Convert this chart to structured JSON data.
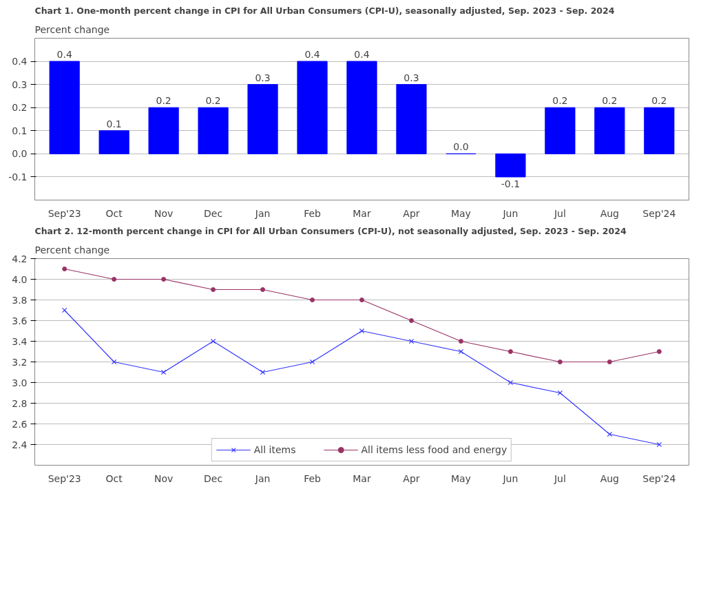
{
  "chart_data": [
    {
      "type": "bar",
      "title": "Chart 1. One-month percent change in CPI for All Urban Consumers (CPI-U), seasonally adjusted, Sep. 2023 - Sep. 2024",
      "ylabel": "Percent change",
      "categories": [
        "Sep'23",
        "Oct",
        "Nov",
        "Dec",
        "Jan",
        "Feb",
        "Mar",
        "Apr",
        "May",
        "Jun",
        "Jul",
        "Aug",
        "Sep'24"
      ],
      "values": [
        0.4,
        0.1,
        0.2,
        0.2,
        0.3,
        0.4,
        0.4,
        0.3,
        0.0,
        -0.1,
        0.2,
        0.2,
        0.2
      ],
      "color": "#0000ff",
      "ylim": [
        -0.2,
        0.5
      ],
      "yticks": [
        {
          "value": -0.1,
          "label": "-0.1"
        },
        {
          "value": 0.0,
          "label": "0.0"
        },
        {
          "value": 0.1,
          "label": "0.1"
        },
        {
          "value": 0.2,
          "label": "0.2"
        },
        {
          "value": 0.3,
          "label": "0.3"
        },
        {
          "value": 0.4,
          "label": "0.4"
        }
      ],
      "grid": "y",
      "value_labels": [
        "0.4",
        "0.1",
        "0.2",
        "0.2",
        "0.3",
        "0.4",
        "0.4",
        "0.3",
        "0.0",
        "-0.1",
        "0.2",
        "0.2",
        "0.2"
      ]
    },
    {
      "type": "line",
      "title": "Chart 2. 12-month percent change in CPI for All Urban Consumers (CPI-U), not seasonally adjusted, Sep. 2023 - Sep. 2024",
      "ylabel": "Percent change",
      "categories": [
        "Sep'23",
        "Oct",
        "Nov",
        "Dec",
        "Jan",
        "Feb",
        "Mar",
        "Apr",
        "May",
        "Jun",
        "Jul",
        "Aug",
        "Sep'24"
      ],
      "series": [
        {
          "name": "All items",
          "color": "#3333ff",
          "marker": "cross",
          "values": [
            3.7,
            3.2,
            3.1,
            3.4,
            3.1,
            3.2,
            3.5,
            3.4,
            3.3,
            3.0,
            2.9,
            2.5,
            2.4
          ]
        },
        {
          "name": "All items less food and energy",
          "color": "#993366",
          "marker": "circle",
          "values": [
            4.1,
            4.0,
            4.0,
            3.9,
            3.9,
            3.8,
            3.8,
            3.6,
            3.4,
            3.3,
            3.2,
            3.2,
            3.3
          ]
        }
      ],
      "ylim": [
        2.2,
        4.2
      ],
      "yticks": [
        {
          "value": 2.4,
          "label": "2.4"
        },
        {
          "value": 2.6,
          "label": "2.6"
        },
        {
          "value": 2.8,
          "label": "2.8"
        },
        {
          "value": 3.0,
          "label": "3.0"
        },
        {
          "value": 3.2,
          "label": "3.2"
        },
        {
          "value": 3.4,
          "label": "3.4"
        },
        {
          "value": 3.6,
          "label": "3.6"
        },
        {
          "value": 3.8,
          "label": "3.8"
        },
        {
          "value": 4.0,
          "label": "4.0"
        },
        {
          "value": 4.2,
          "label": "4.2"
        }
      ],
      "grid": "y",
      "legend": "bottom",
      "line_style": "solid"
    }
  ]
}
